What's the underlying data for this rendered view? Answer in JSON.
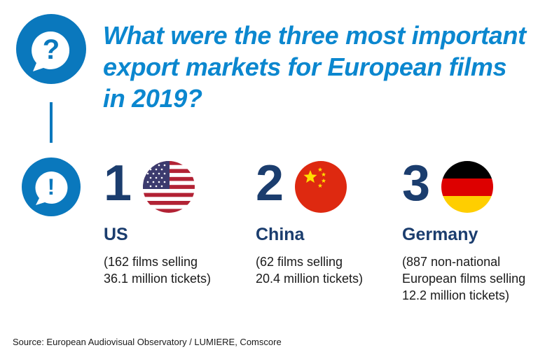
{
  "question": {
    "lines": [
      "What were the three most important",
      "export markets for European films",
      "in 2019?"
    ]
  },
  "icons": {
    "question": "question-mark-bubble-icon",
    "answer": "exclamation-bubble-icon"
  },
  "colors": {
    "accent_blue": "#0b87cf",
    "icon_blue": "#0a78bd",
    "navy": "#1b3d6e"
  },
  "rankings": [
    {
      "rank": "1",
      "country": "US",
      "flag": "us-flag-icon",
      "detail_lines": [
        "(162 films selling",
        "36.1 million tickets)"
      ]
    },
    {
      "rank": "2",
      "country": "China",
      "flag": "china-flag-icon",
      "detail_lines": [
        "(62 films selling",
        "20.4 million tickets)"
      ]
    },
    {
      "rank": "3",
      "country": "Germany",
      "flag": "germany-flag-icon",
      "detail_lines": [
        "(887 non-national",
        "European films selling",
        "12.2 million tickets)"
      ]
    }
  ],
  "source": "Source: European Audiovisual Observatory / LUMIERE, Comscore"
}
